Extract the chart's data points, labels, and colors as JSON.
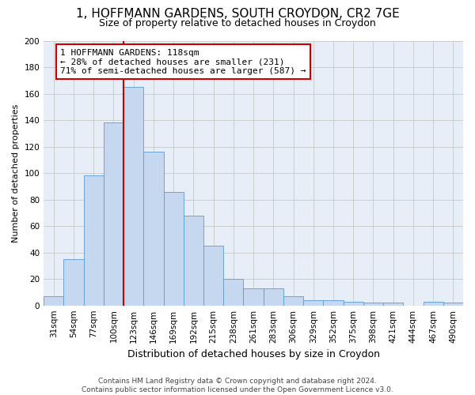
{
  "title1": "1, HOFFMANN GARDENS, SOUTH CROYDON, CR2 7GE",
  "title2": "Size of property relative to detached houses in Croydon",
  "xlabel": "Distribution of detached houses by size in Croydon",
  "ylabel": "Number of detached properties",
  "bar_labels": [
    "31sqm",
    "54sqm",
    "77sqm",
    "100sqm",
    "123sqm",
    "146sqm",
    "169sqm",
    "192sqm",
    "215sqm",
    "238sqm",
    "261sqm",
    "283sqm",
    "306sqm",
    "329sqm",
    "352sqm",
    "375sqm",
    "398sqm",
    "421sqm",
    "444sqm",
    "467sqm",
    "490sqm"
  ],
  "bar_values": [
    7,
    35,
    98,
    138,
    165,
    116,
    86,
    68,
    45,
    20,
    13,
    13,
    7,
    4,
    4,
    3,
    2,
    2,
    0,
    3,
    2
  ],
  "bar_color": "#c5d8f0",
  "bar_edge_color": "#5b9bd5",
  "vline_index": 4,
  "annotation_text": "1 HOFFMANN GARDENS: 118sqm\n← 28% of detached houses are smaller (231)\n71% of semi-detached houses are larger (587) →",
  "annotation_box_color": "#ffffff",
  "annotation_border_color": "#cc0000",
  "vline_color": "#cc0000",
  "grid_color": "#cccccc",
  "background_color": "#e8eef8",
  "footnote": "Contains HM Land Registry data © Crown copyright and database right 2024.\nContains public sector information licensed under the Open Government Licence v3.0.",
  "ylim": [
    0,
    200
  ],
  "yticks": [
    0,
    20,
    40,
    60,
    80,
    100,
    120,
    140,
    160,
    180,
    200
  ],
  "title1_fontsize": 11,
  "title2_fontsize": 9,
  "ylabel_fontsize": 8,
  "xlabel_fontsize": 9,
  "tick_fontsize": 7.5,
  "footnote_fontsize": 6.5
}
